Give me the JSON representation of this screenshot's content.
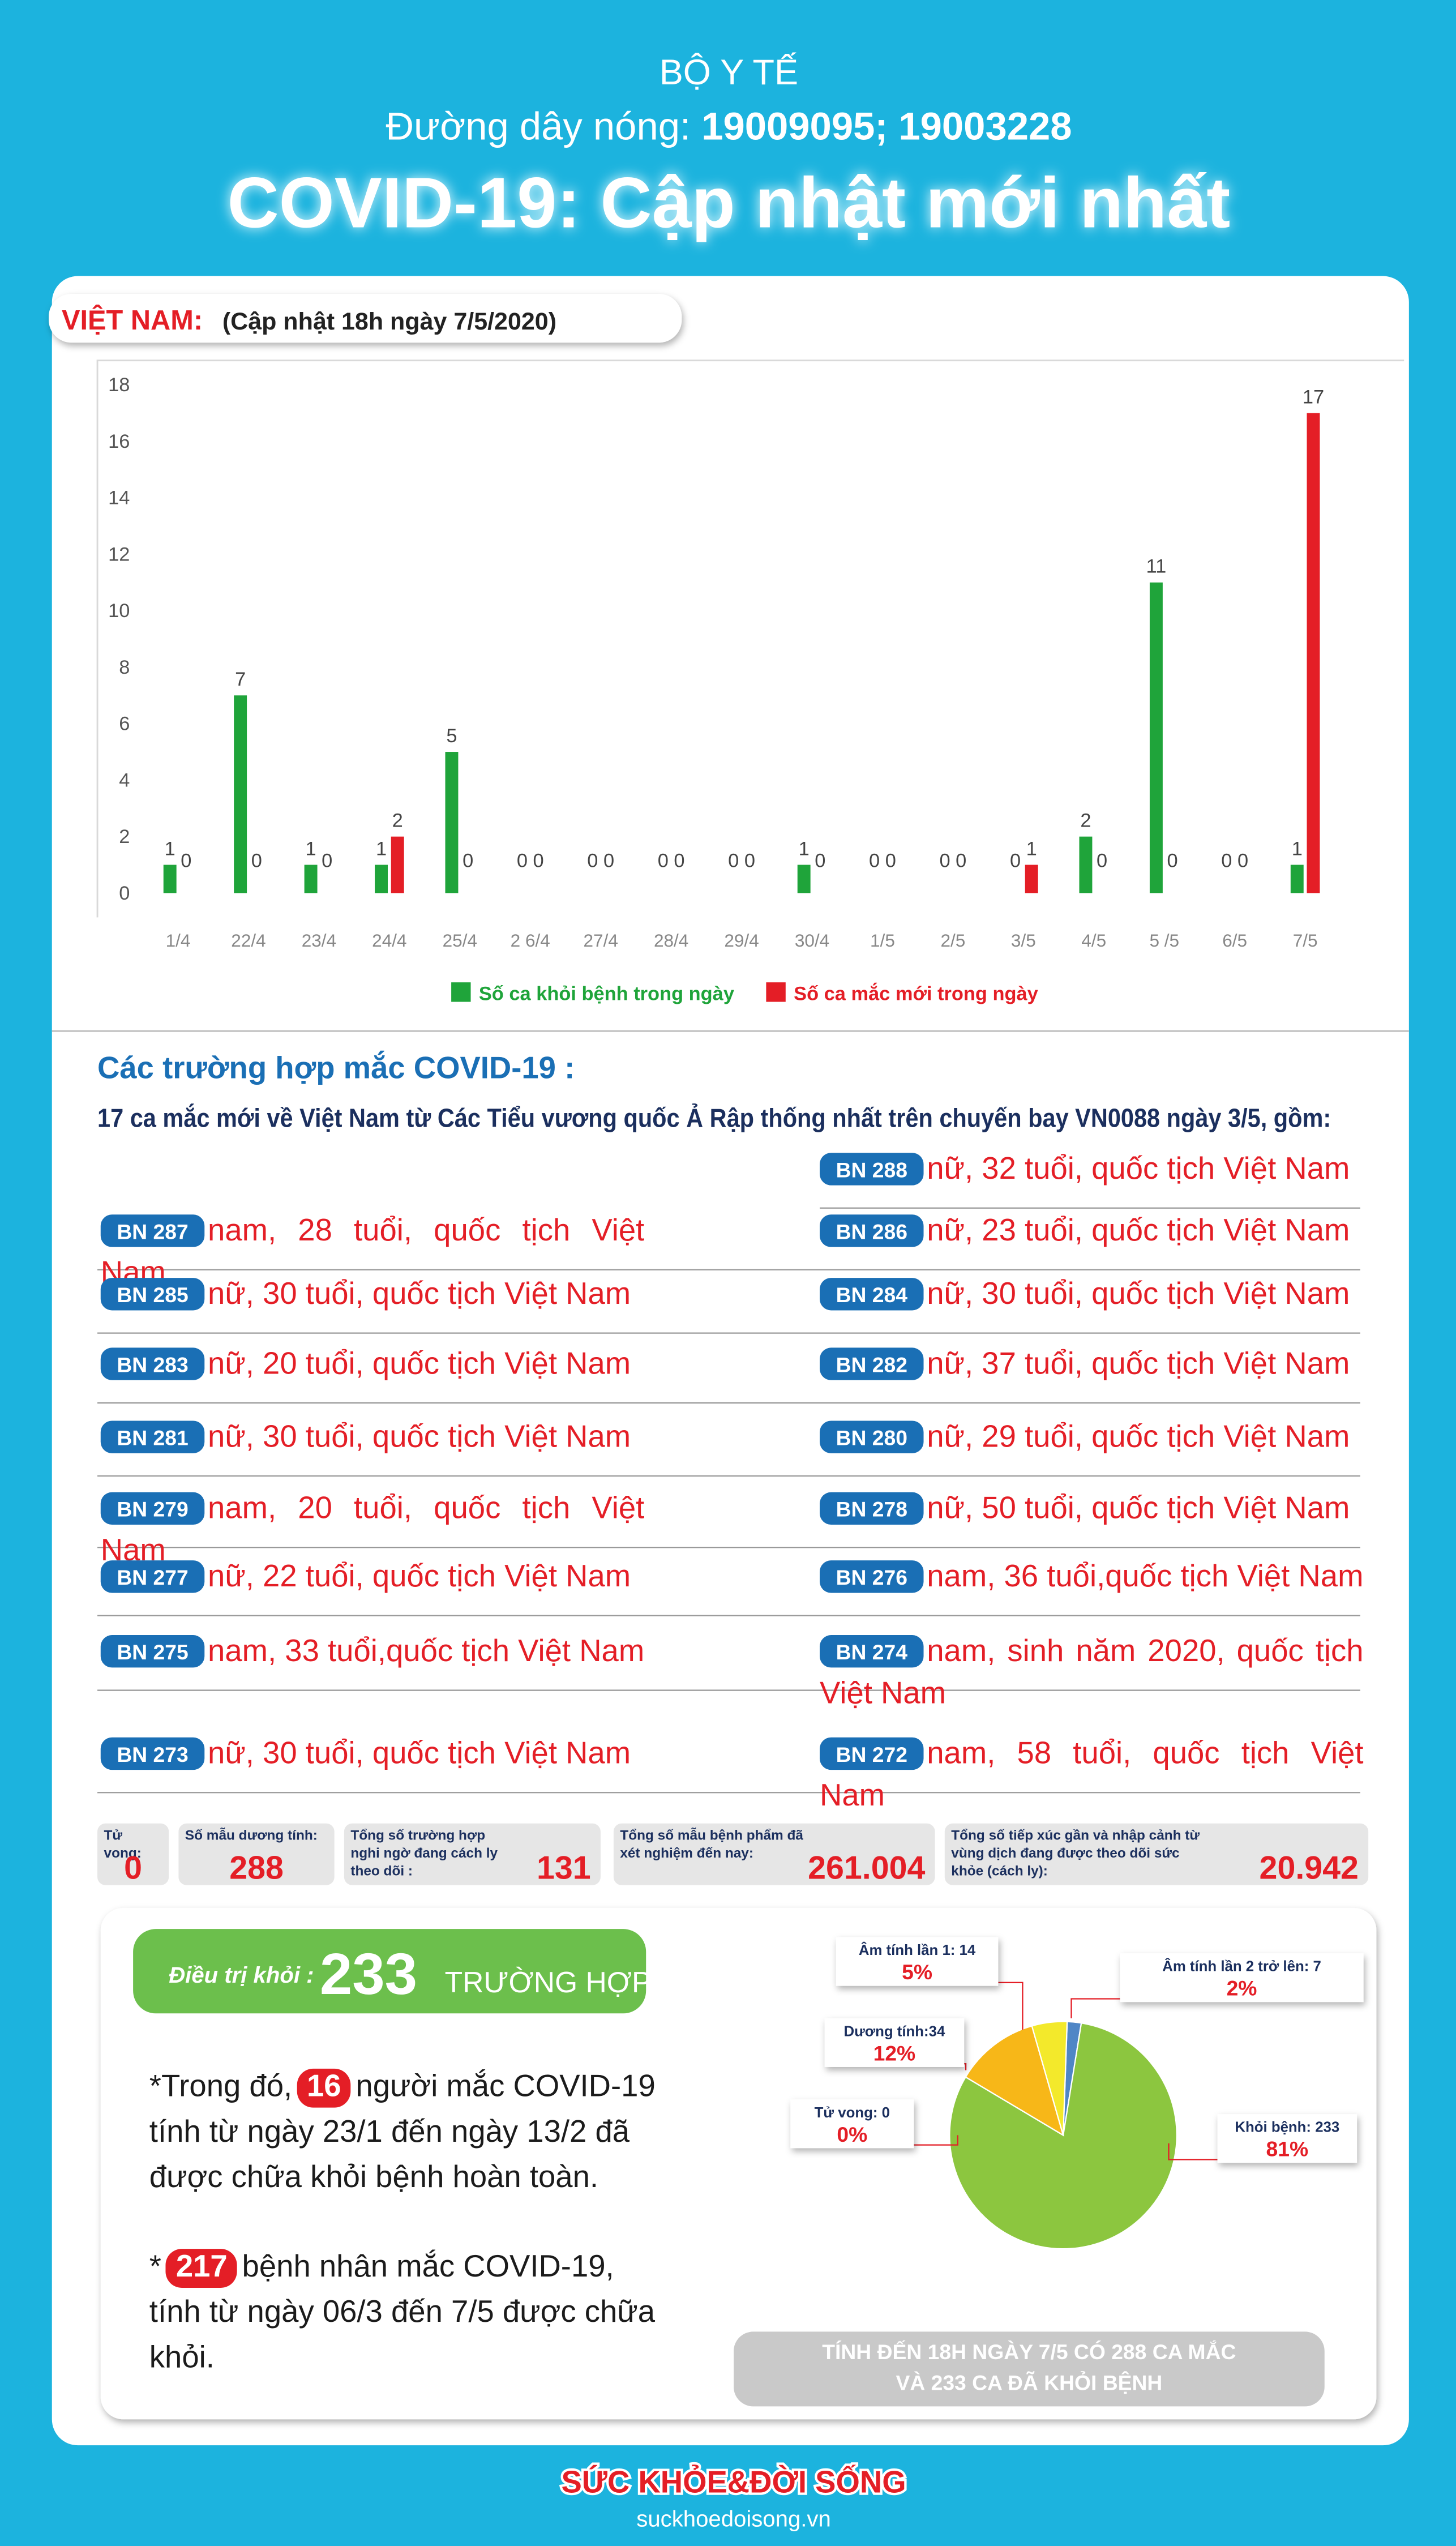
{
  "header": {
    "org": "BỘ Y TẾ",
    "hotline_label": "Đường dây nóng:",
    "hotline": "19009095; 19003228",
    "title": "COVID-19: Cập nhật mới nhất"
  },
  "section": {
    "country": "VIỆT NAM:",
    "updated": "(Cập nhật 18h ngày 7/5/2020)"
  },
  "chart_data": [
    {
      "type": "bar",
      "categories": [
        "1/4",
        "22/4",
        "23/4",
        "24/4",
        "25/4",
        "2 6/4",
        "27/4",
        "28/4",
        "29/4",
        "30/4",
        "1/5",
        "2/5",
        "3/5",
        "4/5",
        "5 /5",
        "6/5",
        "7/5"
      ],
      "series": [
        {
          "name": "Số ca khỏi bệnh trong ngày",
          "color": "#1fa43a",
          "values": [
            1,
            7,
            1,
            1,
            5,
            0,
            0,
            0,
            0,
            1,
            0,
            0,
            0,
            2,
            11,
            0,
            1
          ]
        },
        {
          "name": "Số ca mắc mới trong ngày",
          "color": "#e41e26",
          "values": [
            0,
            0,
            0,
            2,
            0,
            0,
            0,
            0,
            0,
            0,
            0,
            0,
            1,
            0,
            0,
            0,
            17
          ]
        }
      ],
      "ylim": [
        0,
        18
      ],
      "yticks": [
        0,
        2,
        4,
        6,
        8,
        10,
        12,
        14,
        16,
        18
      ],
      "grid": false,
      "legend": "bottom"
    },
    {
      "type": "pie",
      "categories": [
        "Âm tính lần 2 trở lên: 7",
        "Khỏi bệnh: 233",
        "Tử vong: 0",
        "Dương tính:34",
        "Âm tính lần 1: 14"
      ],
      "values": [
        2,
        81,
        0,
        12,
        5
      ],
      "value_labels": [
        "2%",
        "81%",
        "0%",
        "12%",
        "5%"
      ],
      "colors": [
        "#4f86c6",
        "#8cc63f",
        "#c00000",
        "#f7b718",
        "#f3e92b"
      ]
    }
  ],
  "cases": {
    "title": "Các trường hợp mắc COVID-19 :",
    "intro": "17 ca mắc mới về Việt Nam từ Các Tiểu vương quốc Ả Rập thống nhất trên chuyến bay VN0088 ngày 3/5, gồm:",
    "list": [
      {
        "id": "BN 288",
        "desc": "nữ, 32 tuổi, quốc tịch Việt Nam"
      },
      {
        "id": "BN 287",
        "desc": "nam, 28 tuổi, quốc tịch Việt Nam"
      },
      {
        "id": "BN 286",
        "desc": "nữ, 23 tuổi, quốc tịch Việt Nam"
      },
      {
        "id": "BN 285",
        "desc": "nữ, 30 tuổi, quốc tịch Việt Nam"
      },
      {
        "id": "BN 284",
        "desc": "nữ, 30 tuổi, quốc tịch Việt Nam"
      },
      {
        "id": "BN 283",
        "desc": "nữ, 20 tuổi, quốc tịch Việt Nam"
      },
      {
        "id": "BN 282",
        "desc": "nữ, 37 tuổi, quốc tịch Việt Nam"
      },
      {
        "id": "BN 281",
        "desc": "nữ, 30 tuổi, quốc tịch Việt Nam"
      },
      {
        "id": "BN 280",
        "desc": "nữ, 29 tuổi, quốc tịch Việt Nam"
      },
      {
        "id": "BN 279",
        "desc": "nam, 20 tuổi, quốc tịch Việt Nam"
      },
      {
        "id": "BN 278",
        "desc": "nữ, 50 tuổi, quốc tịch Việt Nam"
      },
      {
        "id": "BN 277",
        "desc": "nữ, 22 tuổi, quốc tịch Việt Nam"
      },
      {
        "id": "BN 276",
        "desc": "nam, 36 tuổi,quốc tịch Việt Nam"
      },
      {
        "id": "BN 275",
        "desc": "nam, 33 tuổi,quốc tịch Việt Nam"
      },
      {
        "id": "BN 274",
        "desc": "nam, sinh năm 2020, quốc tịch Việt Nam"
      },
      {
        "id": "BN 273",
        "desc": "nữ, 30 tuổi, quốc tịch Việt Nam"
      },
      {
        "id": "BN 272",
        "desc": "nam, 58 tuổi, quốc tịch Việt Nam"
      }
    ]
  },
  "stats": [
    {
      "label": "Tử vong:",
      "value": "0"
    },
    {
      "label": "Số mẫu dương tính:",
      "value": "288"
    },
    {
      "label": "Tổng số trường hợp nghi ngờ đang cách ly theo dõi :",
      "value": "131"
    },
    {
      "label": "Tổng số mẫu bệnh phẩm đã xét nghiệm đến nay:",
      "value": "261.004"
    },
    {
      "label": "Tổng số tiếp xúc gần và nhập cảnh từ vùng dịch đang được theo dõi sức khỏe (cách ly):",
      "value": "20.942"
    }
  ],
  "recovery": {
    "label": "Điều trị khỏi :",
    "count": "233",
    "unit": "TRƯỜNG HỢP",
    "note1": {
      "pre": "*Trong đó,",
      "num": "16",
      "post": "người mắc COVID-19 tính từ ngày 23/1 đến ngày 13/2 đã được chữa khỏi bệnh hoàn toàn."
    },
    "note2": {
      "pre": "*",
      "num": "217",
      "post": "bệnh nhân mắc COVID-19, tính từ ngày 06/3 đến 7/5 được chữa khỏi."
    },
    "summary": "TÍNH ĐẾN 18H NGÀY 7/5 CÓ 288 CA MẮC VÀ 233 CA ĐÃ KHỎI BỆNH"
  },
  "footer": {
    "logo": "SỨC KHỎE&ĐỜI SỐNG",
    "site": "suckhoedoisong.vn"
  }
}
